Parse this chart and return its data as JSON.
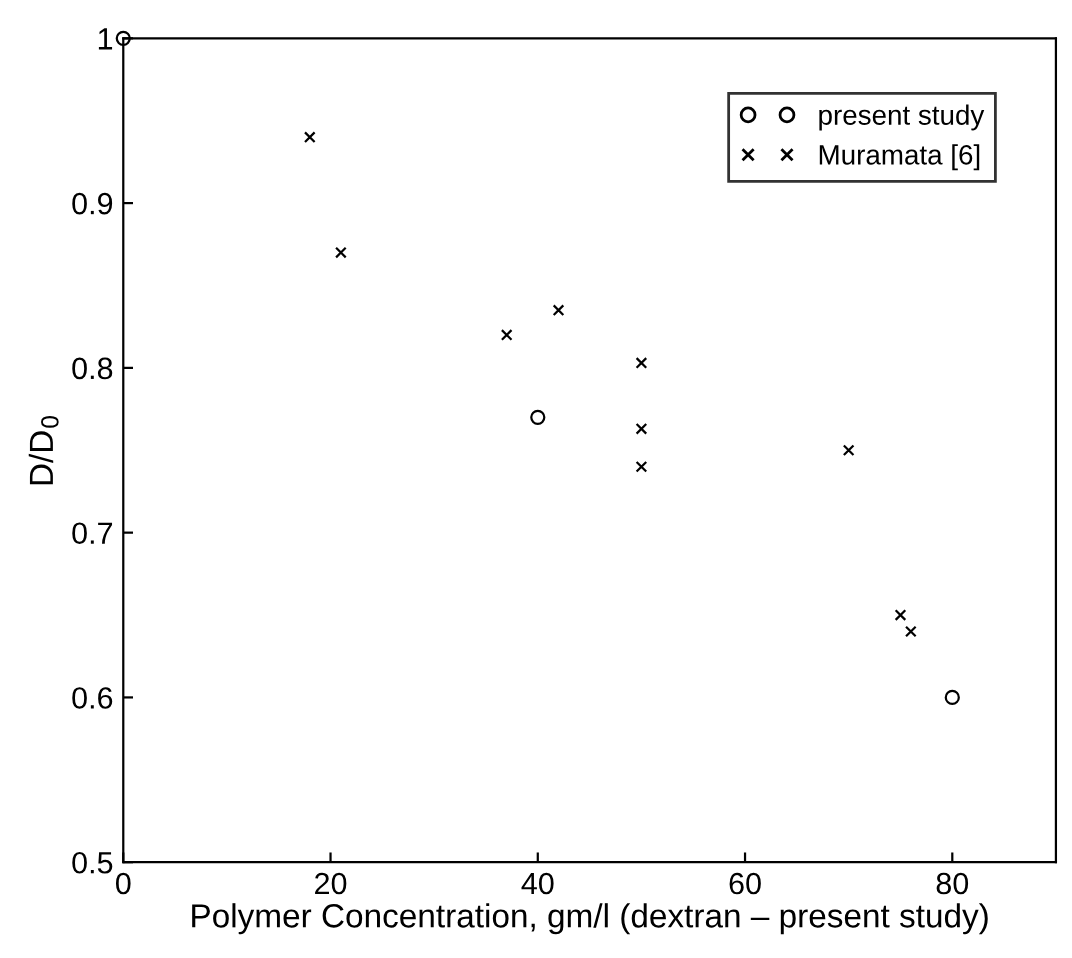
{
  "chart_data": {
    "type": "scatter",
    "xlabel": "Polymer Concentration, gm/l (dextran – present study)",
    "ylabel": "D/D$_{0}$",
    "xlim": [
      0,
      90
    ],
    "ylim": [
      0.5,
      1
    ],
    "xticks": [
      0,
      20,
      40,
      60,
      80
    ],
    "yticks": [
      0.5,
      0.6,
      0.7,
      0.8,
      0.9,
      1
    ],
    "grid": false,
    "legend": "top right",
    "series": [
      {
        "name": "present study",
        "color": "#000000",
        "marker": "circle",
        "x": [
          0,
          40,
          80
        ],
        "values": [
          1.0,
          0.77,
          0.6
        ]
      },
      {
        "name": "Muramata [6]",
        "color": "#000000",
        "marker": "cross",
        "x": [
          18,
          21,
          37,
          42,
          50,
          50,
          50,
          70,
          75,
          76
        ],
        "values": [
          0.94,
          0.87,
          0.82,
          0.835,
          0.803,
          0.763,
          0.74,
          0.75,
          0.65,
          0.64
        ]
      }
    ]
  }
}
